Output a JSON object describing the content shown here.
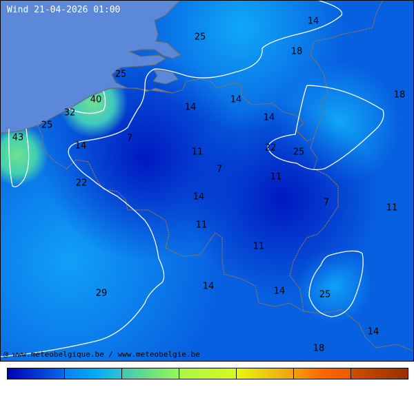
{
  "title": "Wind 21-04-2026 01:00",
  "credit": "@ www.meteobelgique.be / www.meteobelgie.be",
  "colors": {
    "sea": "#5b88d8",
    "field_base": "#0760e0",
    "contour": "#ffffff",
    "border": "#7a6a55"
  },
  "legend_colors": [
    [
      "#0000b8",
      "#0a68e8"
    ],
    [
      "#0a80f0",
      "#00a8f8",
      "#30c0d0"
    ],
    [
      "#40c8b0",
      "#98f858"
    ],
    [
      "#a8f848",
      "#d8f820"
    ],
    [
      "#e8f810",
      "#f0a010"
    ],
    [
      "#f0a010",
      "#ff6600",
      "#e85c00"
    ],
    [
      "#d04c00",
      "#983000"
    ]
  ],
  "wind_labels": [
    "14",
    "25",
    "18",
    "18",
    "25",
    "40",
    "14",
    "32",
    "14",
    "14",
    "25",
    "43",
    "7",
    "14",
    "22",
    "25",
    "11",
    "7",
    "11",
    "22",
    "14",
    "7",
    "11",
    "11",
    "11",
    "14",
    "14",
    "25",
    "29",
    "14",
    "18"
  ]
}
